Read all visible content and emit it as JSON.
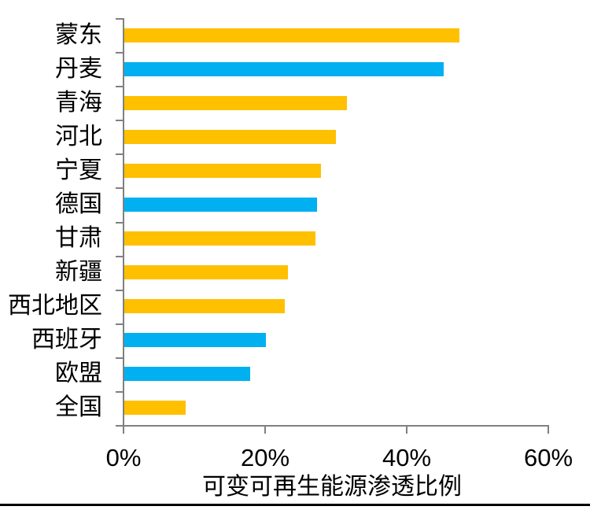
{
  "chart_data": {
    "type": "bar",
    "orientation": "horizontal",
    "title": "",
    "xlabel": "可变可再生能源渗透比例",
    "ylabel": "",
    "xlim": [
      0,
      60
    ],
    "grid": false,
    "legend": null,
    "x_ticks": [
      {
        "value": 0,
        "label": "0%"
      },
      {
        "value": 20,
        "label": "20%"
      },
      {
        "value": 40,
        "label": "40%"
      },
      {
        "value": 60,
        "label": "60%"
      }
    ],
    "categories": [
      "蒙东",
      "丹麦",
      "青海",
      "河北",
      "宁夏",
      "德国",
      "甘肃",
      "新疆",
      "西北地区",
      "西班牙",
      "欧盟",
      "全国"
    ],
    "values": [
      47.3,
      45.1,
      31.4,
      29.9,
      27.8,
      27.2,
      27.0,
      23.1,
      22.7,
      20.0,
      17.8,
      8.7
    ],
    "bar_colors": [
      "yellow",
      "blue",
      "yellow",
      "yellow",
      "yellow",
      "blue",
      "yellow",
      "yellow",
      "yellow",
      "blue",
      "blue",
      "yellow"
    ],
    "colors": {
      "yellow": "#FFC000",
      "blue": "#00B0F0",
      "axis": "#808080",
      "text": "#000000",
      "bottom_rule": "#000000"
    }
  }
}
